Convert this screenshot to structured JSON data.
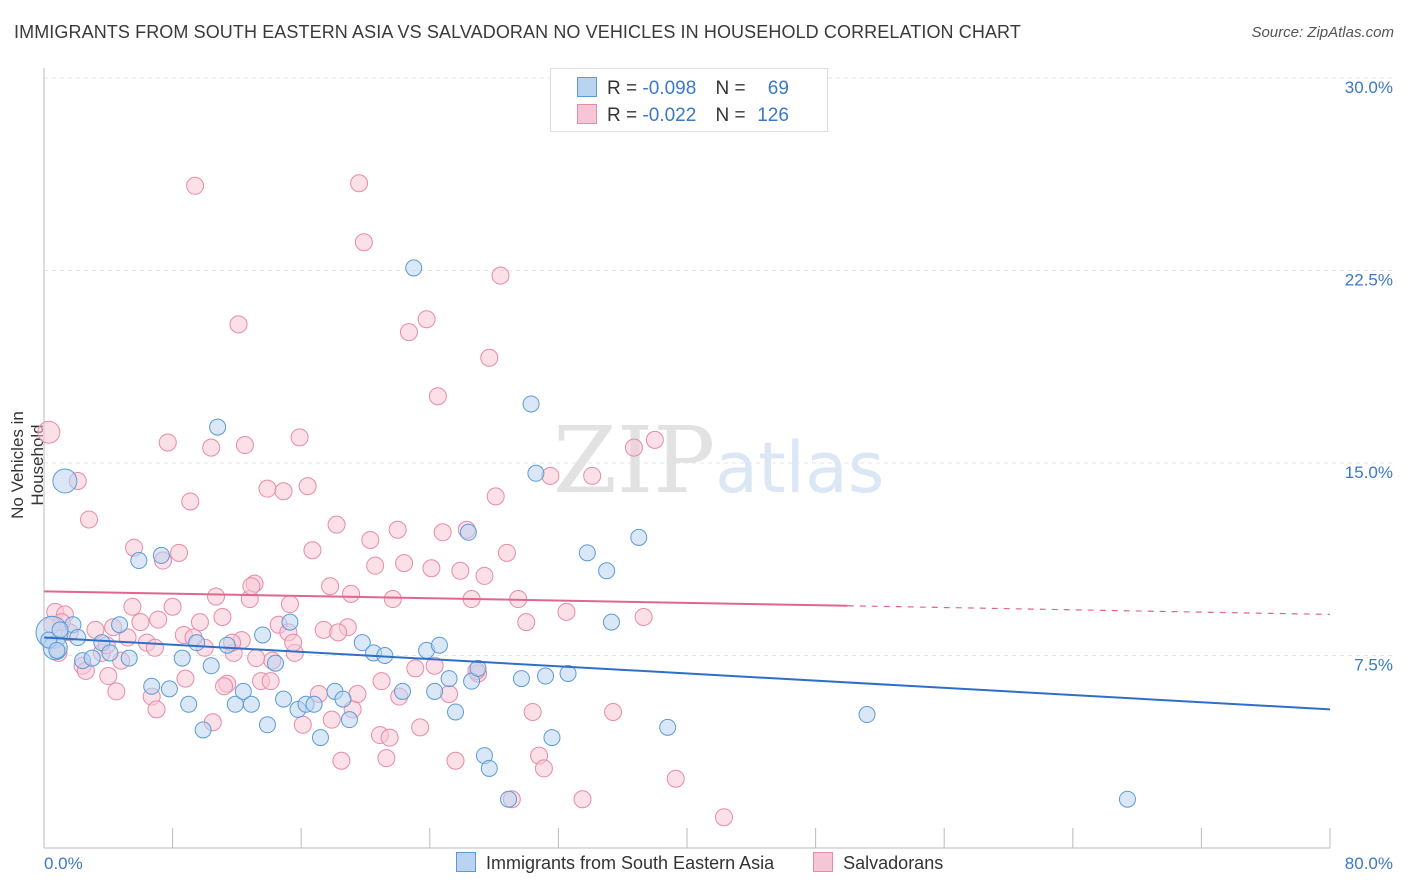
{
  "title": "IMMIGRANTS FROM SOUTH EASTERN ASIA VS SALVADORAN NO VEHICLES IN HOUSEHOLD CORRELATION CHART",
  "source": "Source: ZipAtlas.com",
  "watermark": "ZIPatlas",
  "legend": {
    "row1": {
      "r_label": "R =",
      "r_value": "-0.098",
      "n_label": "N =",
      "n_value": "69"
    },
    "row2": {
      "r_label": "R =",
      "r_value": "-0.022",
      "n_label": "N =",
      "n_value": "126"
    }
  },
  "colors": {
    "blue": "#5b9bd5",
    "blue_fill": "#b9d3f0",
    "blue_line": "#2f6fc8",
    "pink": "#e88aa8",
    "pink_fill": "#f7c6d6",
    "pink_line": "#e0668f",
    "tick_label": "#3b78c8"
  },
  "chart_data": {
    "type": "scatter",
    "title": "IMMIGRANTS FROM SOUTH EASTERN ASIA VS SALVADORAN NO VEHICLES IN HOUSEHOLD CORRELATION CHART",
    "xlabel": "",
    "ylabel": "No Vehicles in Household",
    "xlim": [
      0,
      80
    ],
    "ylim": [
      0,
      30
    ],
    "x_tick_labels": [
      "0.0%",
      "80.0%"
    ],
    "y_tick_labels": [
      "7.5%",
      "15.0%",
      "22.5%",
      "30.0%"
    ],
    "y_ticks": [
      7.5,
      15.0,
      22.5,
      30.0
    ],
    "grid": true,
    "legend_position": "top-center",
    "series": [
      {
        "name": "Immigrants from South Eastern Asia",
        "color": "#5b9bd5",
        "trend": {
          "x": [
            0,
            80
          ],
          "y": [
            8.2,
            5.4
          ]
        },
        "points": [
          [
            0.5,
            8.4
          ],
          [
            0.7,
            7.8
          ],
          [
            1.3,
            14.3
          ],
          [
            1.8,
            8.7
          ],
          [
            2.4,
            7.3
          ],
          [
            3.0,
            7.4
          ],
          [
            3.6,
            8.0
          ],
          [
            4.1,
            7.6
          ],
          [
            4.7,
            8.7
          ],
          [
            5.3,
            7.4
          ],
          [
            5.9,
            11.2
          ],
          [
            6.7,
            6.3
          ],
          [
            7.3,
            11.4
          ],
          [
            7.8,
            6.2
          ],
          [
            8.6,
            7.4
          ],
          [
            9.0,
            5.6
          ],
          [
            9.5,
            8.0
          ],
          [
            9.9,
            4.6
          ],
          [
            10.4,
            7.1
          ],
          [
            10.8,
            16.4
          ],
          [
            11.4,
            7.9
          ],
          [
            11.9,
            5.6
          ],
          [
            12.4,
            6.1
          ],
          [
            12.9,
            5.6
          ],
          [
            13.6,
            8.3
          ],
          [
            13.9,
            4.8
          ],
          [
            14.4,
            7.2
          ],
          [
            14.9,
            5.8
          ],
          [
            15.3,
            8.8
          ],
          [
            15.8,
            5.4
          ],
          [
            16.3,
            5.6
          ],
          [
            16.8,
            5.6
          ],
          [
            17.2,
            4.3
          ],
          [
            18.1,
            6.1
          ],
          [
            18.6,
            5.8
          ],
          [
            19.0,
            5.0
          ],
          [
            19.8,
            8.0
          ],
          [
            20.5,
            7.6
          ],
          [
            21.2,
            7.5
          ],
          [
            22.3,
            6.1
          ],
          [
            23.0,
            22.6
          ],
          [
            23.8,
            7.7
          ],
          [
            24.3,
            6.1
          ],
          [
            24.6,
            7.9
          ],
          [
            25.2,
            6.6
          ],
          [
            25.6,
            5.3
          ],
          [
            26.4,
            12.3
          ],
          [
            26.6,
            6.5
          ],
          [
            27.0,
            7.0
          ],
          [
            27.4,
            3.6
          ],
          [
            27.7,
            3.1
          ],
          [
            28.9,
            1.9
          ],
          [
            29.7,
            6.6
          ],
          [
            30.3,
            17.3
          ],
          [
            30.6,
            14.6
          ],
          [
            31.2,
            6.7
          ],
          [
            31.6,
            4.3
          ],
          [
            32.6,
            6.8
          ],
          [
            33.8,
            11.5
          ],
          [
            35.0,
            10.8
          ],
          [
            35.3,
            8.8
          ],
          [
            37.0,
            12.1
          ],
          [
            38.8,
            4.7
          ],
          [
            51.2,
            5.2
          ],
          [
            67.4,
            1.9
          ],
          [
            0.3,
            8.1
          ],
          [
            1.0,
            8.5
          ],
          [
            0.8,
            7.7
          ],
          [
            2.1,
            8.2
          ]
        ]
      },
      {
        "name": "Salvadorans",
        "color": "#e88aa8",
        "trend": {
          "x": [
            0,
            80
          ],
          "y": [
            10.0,
            9.1
          ]
        },
        "points": [
          [
            0.3,
            16.2
          ],
          [
            0.7,
            9.2
          ],
          [
            0.9,
            7.6
          ],
          [
            1.3,
            9.1
          ],
          [
            1.6,
            8.4
          ],
          [
            2.1,
            14.3
          ],
          [
            2.4,
            7.1
          ],
          [
            2.8,
            12.8
          ],
          [
            3.2,
            8.5
          ],
          [
            3.6,
            7.6
          ],
          [
            4.0,
            6.7
          ],
          [
            4.3,
            8.6
          ],
          [
            4.8,
            7.3
          ],
          [
            5.2,
            8.2
          ],
          [
            5.6,
            11.7
          ],
          [
            6.0,
            8.8
          ],
          [
            6.4,
            8.0
          ],
          [
            6.7,
            5.9
          ],
          [
            7.0,
            5.4
          ],
          [
            7.4,
            11.2
          ],
          [
            7.7,
            15.8
          ],
          [
            8.0,
            9.4
          ],
          [
            8.4,
            11.5
          ],
          [
            8.7,
            8.3
          ],
          [
            9.1,
            13.5
          ],
          [
            9.4,
            25.8
          ],
          [
            9.7,
            8.8
          ],
          [
            10.0,
            7.8
          ],
          [
            10.4,
            15.6
          ],
          [
            10.7,
            9.8
          ],
          [
            11.1,
            9.0
          ],
          [
            11.4,
            6.4
          ],
          [
            11.8,
            7.6
          ],
          [
            12.1,
            20.4
          ],
          [
            12.5,
            15.7
          ],
          [
            12.8,
            9.7
          ],
          [
            13.1,
            10.3
          ],
          [
            13.5,
            6.5
          ],
          [
            13.9,
            14.0
          ],
          [
            14.2,
            7.3
          ],
          [
            14.6,
            8.7
          ],
          [
            14.9,
            13.9
          ],
          [
            15.3,
            9.5
          ],
          [
            15.6,
            7.6
          ],
          [
            15.9,
            16.0
          ],
          [
            16.4,
            14.1
          ],
          [
            16.7,
            11.6
          ],
          [
            17.1,
            6.0
          ],
          [
            17.4,
            8.5
          ],
          [
            17.8,
            10.2
          ],
          [
            18.2,
            12.6
          ],
          [
            18.5,
            3.4
          ],
          [
            18.9,
            8.6
          ],
          [
            19.2,
            5.4
          ],
          [
            19.6,
            25.9
          ],
          [
            19.9,
            23.6
          ],
          [
            20.3,
            12.0
          ],
          [
            20.6,
            11.0
          ],
          [
            21.0,
            6.5
          ],
          [
            21.3,
            3.5
          ],
          [
            21.7,
            9.7
          ],
          [
            22.0,
            12.4
          ],
          [
            22.4,
            11.1
          ],
          [
            22.7,
            20.1
          ],
          [
            23.1,
            7.0
          ],
          [
            23.4,
            4.7
          ],
          [
            23.8,
            20.6
          ],
          [
            24.1,
            10.9
          ],
          [
            24.5,
            17.6
          ],
          [
            24.8,
            12.3
          ],
          [
            25.2,
            6.0
          ],
          [
            25.6,
            3.4
          ],
          [
            25.9,
            10.8
          ],
          [
            26.3,
            12.4
          ],
          [
            26.6,
            9.7
          ],
          [
            27.0,
            6.8
          ],
          [
            27.4,
            10.6
          ],
          [
            27.7,
            19.1
          ],
          [
            28.1,
            13.7
          ],
          [
            28.4,
            22.3
          ],
          [
            28.8,
            11.5
          ],
          [
            29.1,
            1.9
          ],
          [
            29.5,
            9.7
          ],
          [
            30.4,
            5.3
          ],
          [
            30.8,
            3.6
          ],
          [
            31.1,
            3.1
          ],
          [
            31.5,
            14.5
          ],
          [
            32.5,
            9.2
          ],
          [
            33.5,
            1.9
          ],
          [
            34.1,
            14.5
          ],
          [
            35.4,
            5.3
          ],
          [
            36.7,
            15.6
          ],
          [
            37.3,
            9.0
          ],
          [
            38.0,
            15.9
          ],
          [
            39.3,
            2.7
          ],
          [
            42.3,
            1.2
          ],
          [
            14.1,
            6.5
          ],
          [
            15.2,
            8.4
          ],
          [
            12.3,
            8.1
          ],
          [
            11.2,
            6.3
          ],
          [
            10.5,
            4.9
          ],
          [
            17.9,
            5.0
          ],
          [
            19.5,
            6.0
          ],
          [
            20.9,
            4.4
          ],
          [
            22.1,
            5.9
          ],
          [
            8.8,
            6.6
          ],
          [
            6.9,
            7.8
          ],
          [
            5.5,
            9.4
          ],
          [
            3.9,
            7.9
          ],
          [
            2.6,
            6.9
          ],
          [
            1.1,
            8.8
          ],
          [
            0.5,
            8.7
          ],
          [
            4.5,
            6.1
          ],
          [
            9.3,
            8.2
          ],
          [
            13.2,
            7.4
          ],
          [
            16.1,
            4.8
          ],
          [
            18.3,
            8.4
          ],
          [
            21.5,
            4.3
          ],
          [
            24.3,
            7.1
          ],
          [
            26.9,
            6.9
          ],
          [
            30.0,
            8.8
          ],
          [
            7.1,
            8.9
          ],
          [
            11.7,
            8.0
          ],
          [
            15.5,
            8.0
          ],
          [
            19.1,
            9.9
          ],
          [
            12.9,
            10.2
          ]
        ]
      }
    ]
  },
  "bottom_legend": {
    "item1": "Immigrants from South Eastern Asia",
    "item2": "Salvadorans"
  }
}
